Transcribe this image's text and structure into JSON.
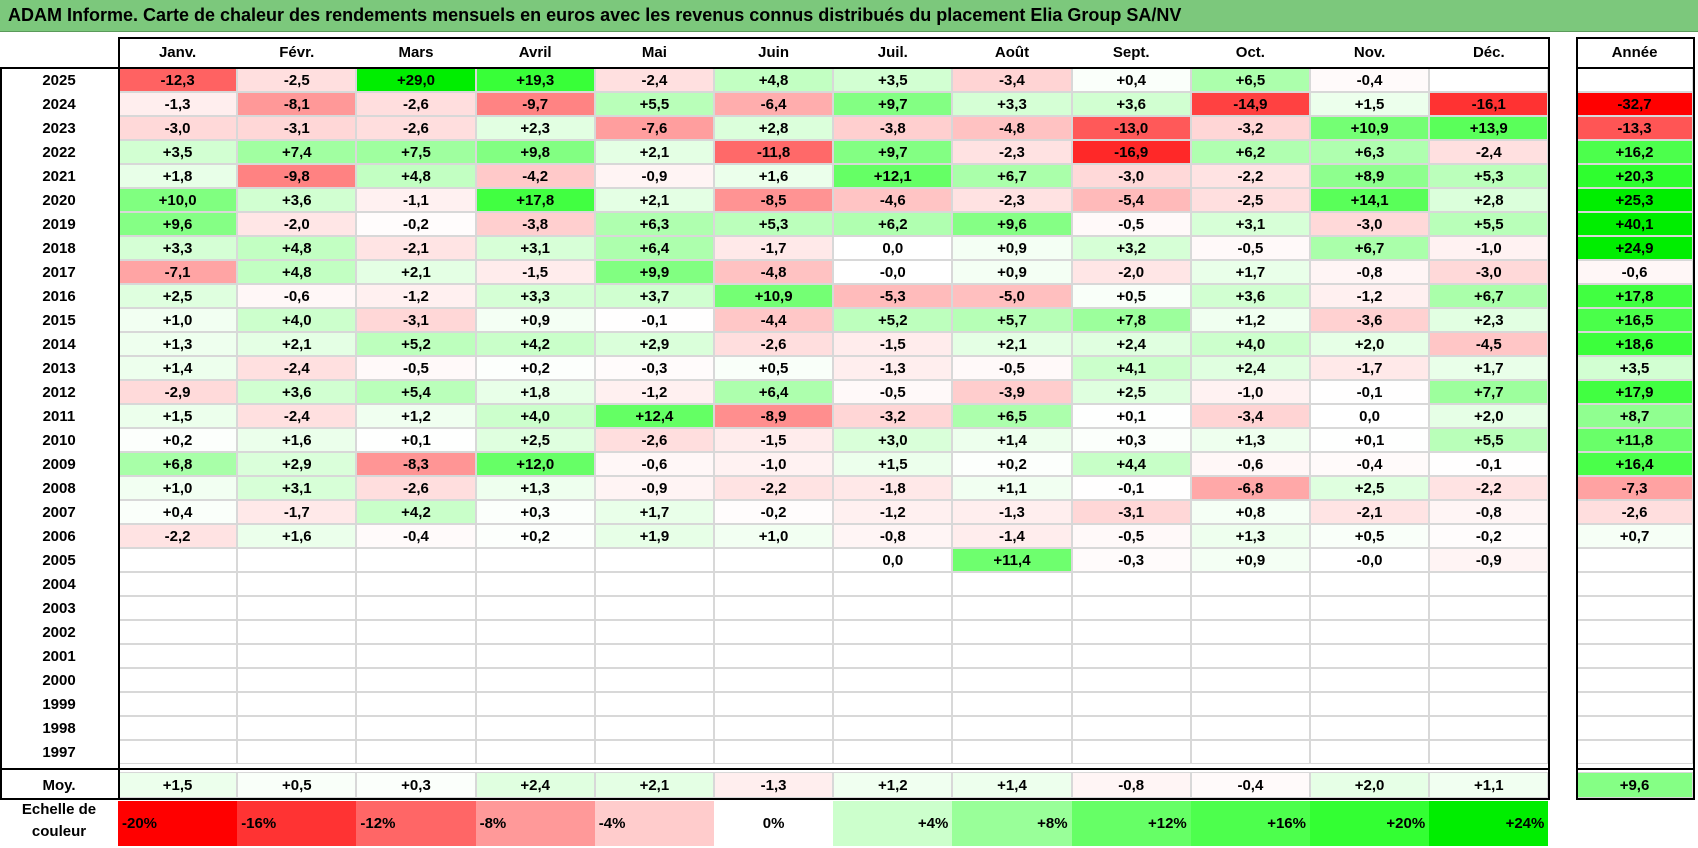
{
  "title": "ADAM Informe. Carte de chaleur des rendements mensuels en euros avec les revenus connus distribués du placement Elia Group SA/NV",
  "chart_data": {
    "type": "heatmap",
    "columns": [
      "Janv.",
      "Févr.",
      "Mars",
      "Avril",
      "Mai",
      "Juin",
      "Juil.",
      "Août",
      "Sept.",
      "Oct.",
      "Nov.",
      "Déc."
    ],
    "annual_header": "Année",
    "rows": [
      {
        "year": "2025",
        "months": [
          "-12,3",
          "-2,5",
          "+29,0",
          "+19,3",
          "-2,4",
          "+4,8",
          "+3,5",
          "-3,4",
          "+0,4",
          "+6,5",
          "-0,4",
          ""
        ],
        "annual": ""
      },
      {
        "year": "2024",
        "months": [
          "-1,3",
          "-8,1",
          "-2,6",
          "-9,7",
          "+5,5",
          "-6,4",
          "+9,7",
          "+3,3",
          "+3,6",
          "-14,9",
          "+1,5",
          "-16,1"
        ],
        "annual": "-32,7"
      },
      {
        "year": "2023",
        "months": [
          "-3,0",
          "-3,1",
          "-2,6",
          "+2,3",
          "-7,6",
          "+2,8",
          "-3,8",
          "-4,8",
          "-13,0",
          "-3,2",
          "+10,9",
          "+13,9"
        ],
        "annual": "-13,3"
      },
      {
        "year": "2022",
        "months": [
          "+3,5",
          "+7,4",
          "+7,5",
          "+9,8",
          "+2,1",
          "-11,8",
          "+9,7",
          "-2,3",
          "-16,9",
          "+6,2",
          "+6,3",
          "-2,4"
        ],
        "annual": "+16,2"
      },
      {
        "year": "2021",
        "months": [
          "+1,8",
          "-9,8",
          "+4,8",
          "-4,2",
          "-0,9",
          "+1,6",
          "+12,1",
          "+6,7",
          "-3,0",
          "-2,2",
          "+8,9",
          "+5,3"
        ],
        "annual": "+20,3"
      },
      {
        "year": "2020",
        "months": [
          "+10,0",
          "+3,6",
          "-1,1",
          "+17,8",
          "+2,1",
          "-8,5",
          "-4,6",
          "-2,3",
          "-5,4",
          "-2,5",
          "+14,1",
          "+2,8"
        ],
        "annual": "+25,3"
      },
      {
        "year": "2019",
        "months": [
          "+9,6",
          "-2,0",
          "-0,2",
          "-3,8",
          "+6,3",
          "+5,3",
          "+6,2",
          "+9,6",
          "-0,5",
          "+3,1",
          "-3,0",
          "+5,5"
        ],
        "annual": "+40,1"
      },
      {
        "year": "2018",
        "months": [
          "+3,3",
          "+4,8",
          "-2,1",
          "+3,1",
          "+6,4",
          "-1,7",
          "0,0",
          "+0,9",
          "+3,2",
          "-0,5",
          "+6,7",
          "-1,0"
        ],
        "annual": "+24,9"
      },
      {
        "year": "2017",
        "months": [
          "-7,1",
          "+4,8",
          "+2,1",
          "-1,5",
          "+9,9",
          "-4,8",
          "-0,0",
          "+0,9",
          "-2,0",
          "+1,7",
          "-0,8",
          "-3,0"
        ],
        "annual": "-0,6"
      },
      {
        "year": "2016",
        "months": [
          "+2,5",
          "-0,6",
          "-1,2",
          "+3,3",
          "+3,7",
          "+10,9",
          "-5,3",
          "-5,0",
          "+0,5",
          "+3,6",
          "-1,2",
          "+6,7"
        ],
        "annual": "+17,8"
      },
      {
        "year": "2015",
        "months": [
          "+1,0",
          "+4,0",
          "-3,1",
          "+0,9",
          "-0,1",
          "-4,4",
          "+5,2",
          "+5,7",
          "+7,8",
          "+1,2",
          "-3,6",
          "+2,3"
        ],
        "annual": "+16,5"
      },
      {
        "year": "2014",
        "months": [
          "+1,3",
          "+2,1",
          "+5,2",
          "+4,2",
          "+2,9",
          "-2,6",
          "-1,5",
          "+2,1",
          "+2,4",
          "+4,0",
          "+2,0",
          "-4,5"
        ],
        "annual": "+18,6"
      },
      {
        "year": "2013",
        "months": [
          "+1,4",
          "-2,4",
          "-0,5",
          "+0,2",
          "-0,3",
          "+0,5",
          "-1,3",
          "-0,5",
          "+4,1",
          "+2,4",
          "-1,7",
          "+1,7"
        ],
        "annual": "+3,5"
      },
      {
        "year": "2012",
        "months": [
          "-2,9",
          "+3,6",
          "+5,4",
          "+1,8",
          "-1,2",
          "+6,4",
          "-0,5",
          "-3,9",
          "+2,5",
          "-1,0",
          "-0,1",
          "+7,7"
        ],
        "annual": "+17,9"
      },
      {
        "year": "2011",
        "months": [
          "+1,5",
          "-2,4",
          "+1,2",
          "+4,0",
          "+12,4",
          "-8,9",
          "-3,2",
          "+6,5",
          "+0,1",
          "-3,4",
          "0,0",
          "+2,0"
        ],
        "annual": "+8,7"
      },
      {
        "year": "2010",
        "months": [
          "+0,2",
          "+1,6",
          "+0,1",
          "+2,5",
          "-2,6",
          "-1,5",
          "+3,0",
          "+1,4",
          "+0,3",
          "+1,3",
          "+0,1",
          "+5,5"
        ],
        "annual": "+11,8"
      },
      {
        "year": "2009",
        "months": [
          "+6,8",
          "+2,9",
          "-8,3",
          "+12,0",
          "-0,6",
          "-1,0",
          "+1,5",
          "+0,2",
          "+4,4",
          "-0,6",
          "-0,4",
          "-0,1"
        ],
        "annual": "+16,4"
      },
      {
        "year": "2008",
        "months": [
          "+1,0",
          "+3,1",
          "-2,6",
          "+1,3",
          "-0,9",
          "-2,2",
          "-1,8",
          "+1,1",
          "-0,1",
          "-6,8",
          "+2,5",
          "-2,2"
        ],
        "annual": "-7,3"
      },
      {
        "year": "2007",
        "months": [
          "+0,4",
          "-1,7",
          "+4,2",
          "+0,3",
          "+1,7",
          "-0,2",
          "-1,2",
          "-1,3",
          "-3,1",
          "+0,8",
          "-2,1",
          "-0,8"
        ],
        "annual": "-2,6"
      },
      {
        "year": "2006",
        "months": [
          "-2,2",
          "+1,6",
          "-0,4",
          "+0,2",
          "+1,9",
          "+1,0",
          "-0,8",
          "-1,4",
          "-0,5",
          "+1,3",
          "+0,5",
          "-0,2"
        ],
        "annual": "+0,7"
      },
      {
        "year": "2005",
        "months": [
          "",
          "",
          "",
          "",
          "",
          "",
          "0,0",
          "+11,4",
          "-0,3",
          "+0,9",
          "-0,0",
          "-0,9"
        ],
        "annual": ""
      },
      {
        "year": "2004",
        "months": [
          "",
          "",
          "",
          "",
          "",
          "",
          "",
          "",
          "",
          "",
          "",
          ""
        ],
        "annual": ""
      },
      {
        "year": "2003",
        "months": [
          "",
          "",
          "",
          "",
          "",
          "",
          "",
          "",
          "",
          "",
          "",
          ""
        ],
        "annual": ""
      },
      {
        "year": "2002",
        "months": [
          "",
          "",
          "",
          "",
          "",
          "",
          "",
          "",
          "",
          "",
          "",
          ""
        ],
        "annual": ""
      },
      {
        "year": "2001",
        "months": [
          "",
          "",
          "",
          "",
          "",
          "",
          "",
          "",
          "",
          "",
          "",
          ""
        ],
        "annual": ""
      },
      {
        "year": "2000",
        "months": [
          "",
          "",
          "",
          "",
          "",
          "",
          "",
          "",
          "",
          "",
          "",
          ""
        ],
        "annual": ""
      },
      {
        "year": "1999",
        "months": [
          "",
          "",
          "",
          "",
          "",
          "",
          "",
          "",
          "",
          "",
          "",
          ""
        ],
        "annual": ""
      },
      {
        "year": "1998",
        "months": [
          "",
          "",
          "",
          "",
          "",
          "",
          "",
          "",
          "",
          "",
          "",
          ""
        ],
        "annual": ""
      },
      {
        "year": "1997",
        "months": [
          "",
          "",
          "",
          "",
          "",
          "",
          "",
          "",
          "",
          "",
          "",
          ""
        ],
        "annual": ""
      }
    ],
    "average": {
      "label": "Moy.",
      "months": [
        "+1,5",
        "+0,5",
        "+0,3",
        "+2,4",
        "+2,1",
        "-1,3",
        "+1,2",
        "+1,4",
        "-0,8",
        "-0,4",
        "+2,0",
        "+1,1"
      ],
      "annual": "+9,6"
    },
    "color_scale": {
      "label": "Echelle de couleur",
      "stops": [
        {
          "label": "-20%",
          "color": "#ff0000"
        },
        {
          "label": "-16%",
          "color": "#ff3333"
        },
        {
          "label": "-12%",
          "color": "#ff6666"
        },
        {
          "label": "-8%",
          "color": "#ff9999"
        },
        {
          "label": "-4%",
          "color": "#ffcccc"
        },
        {
          "label": "0%",
          "color": "#ffffff"
        },
        {
          "label": "+4%",
          "color": "#ccffcc"
        },
        {
          "label": "+8%",
          "color": "#99ff99"
        },
        {
          "label": "+12%",
          "color": "#66ff66"
        },
        {
          "label": "+16%",
          "color": "#4dff4d"
        },
        {
          "label": "+20%",
          "color": "#33ff33"
        },
        {
          "label": "+24%",
          "color": "#00ee00"
        }
      ]
    }
  }
}
